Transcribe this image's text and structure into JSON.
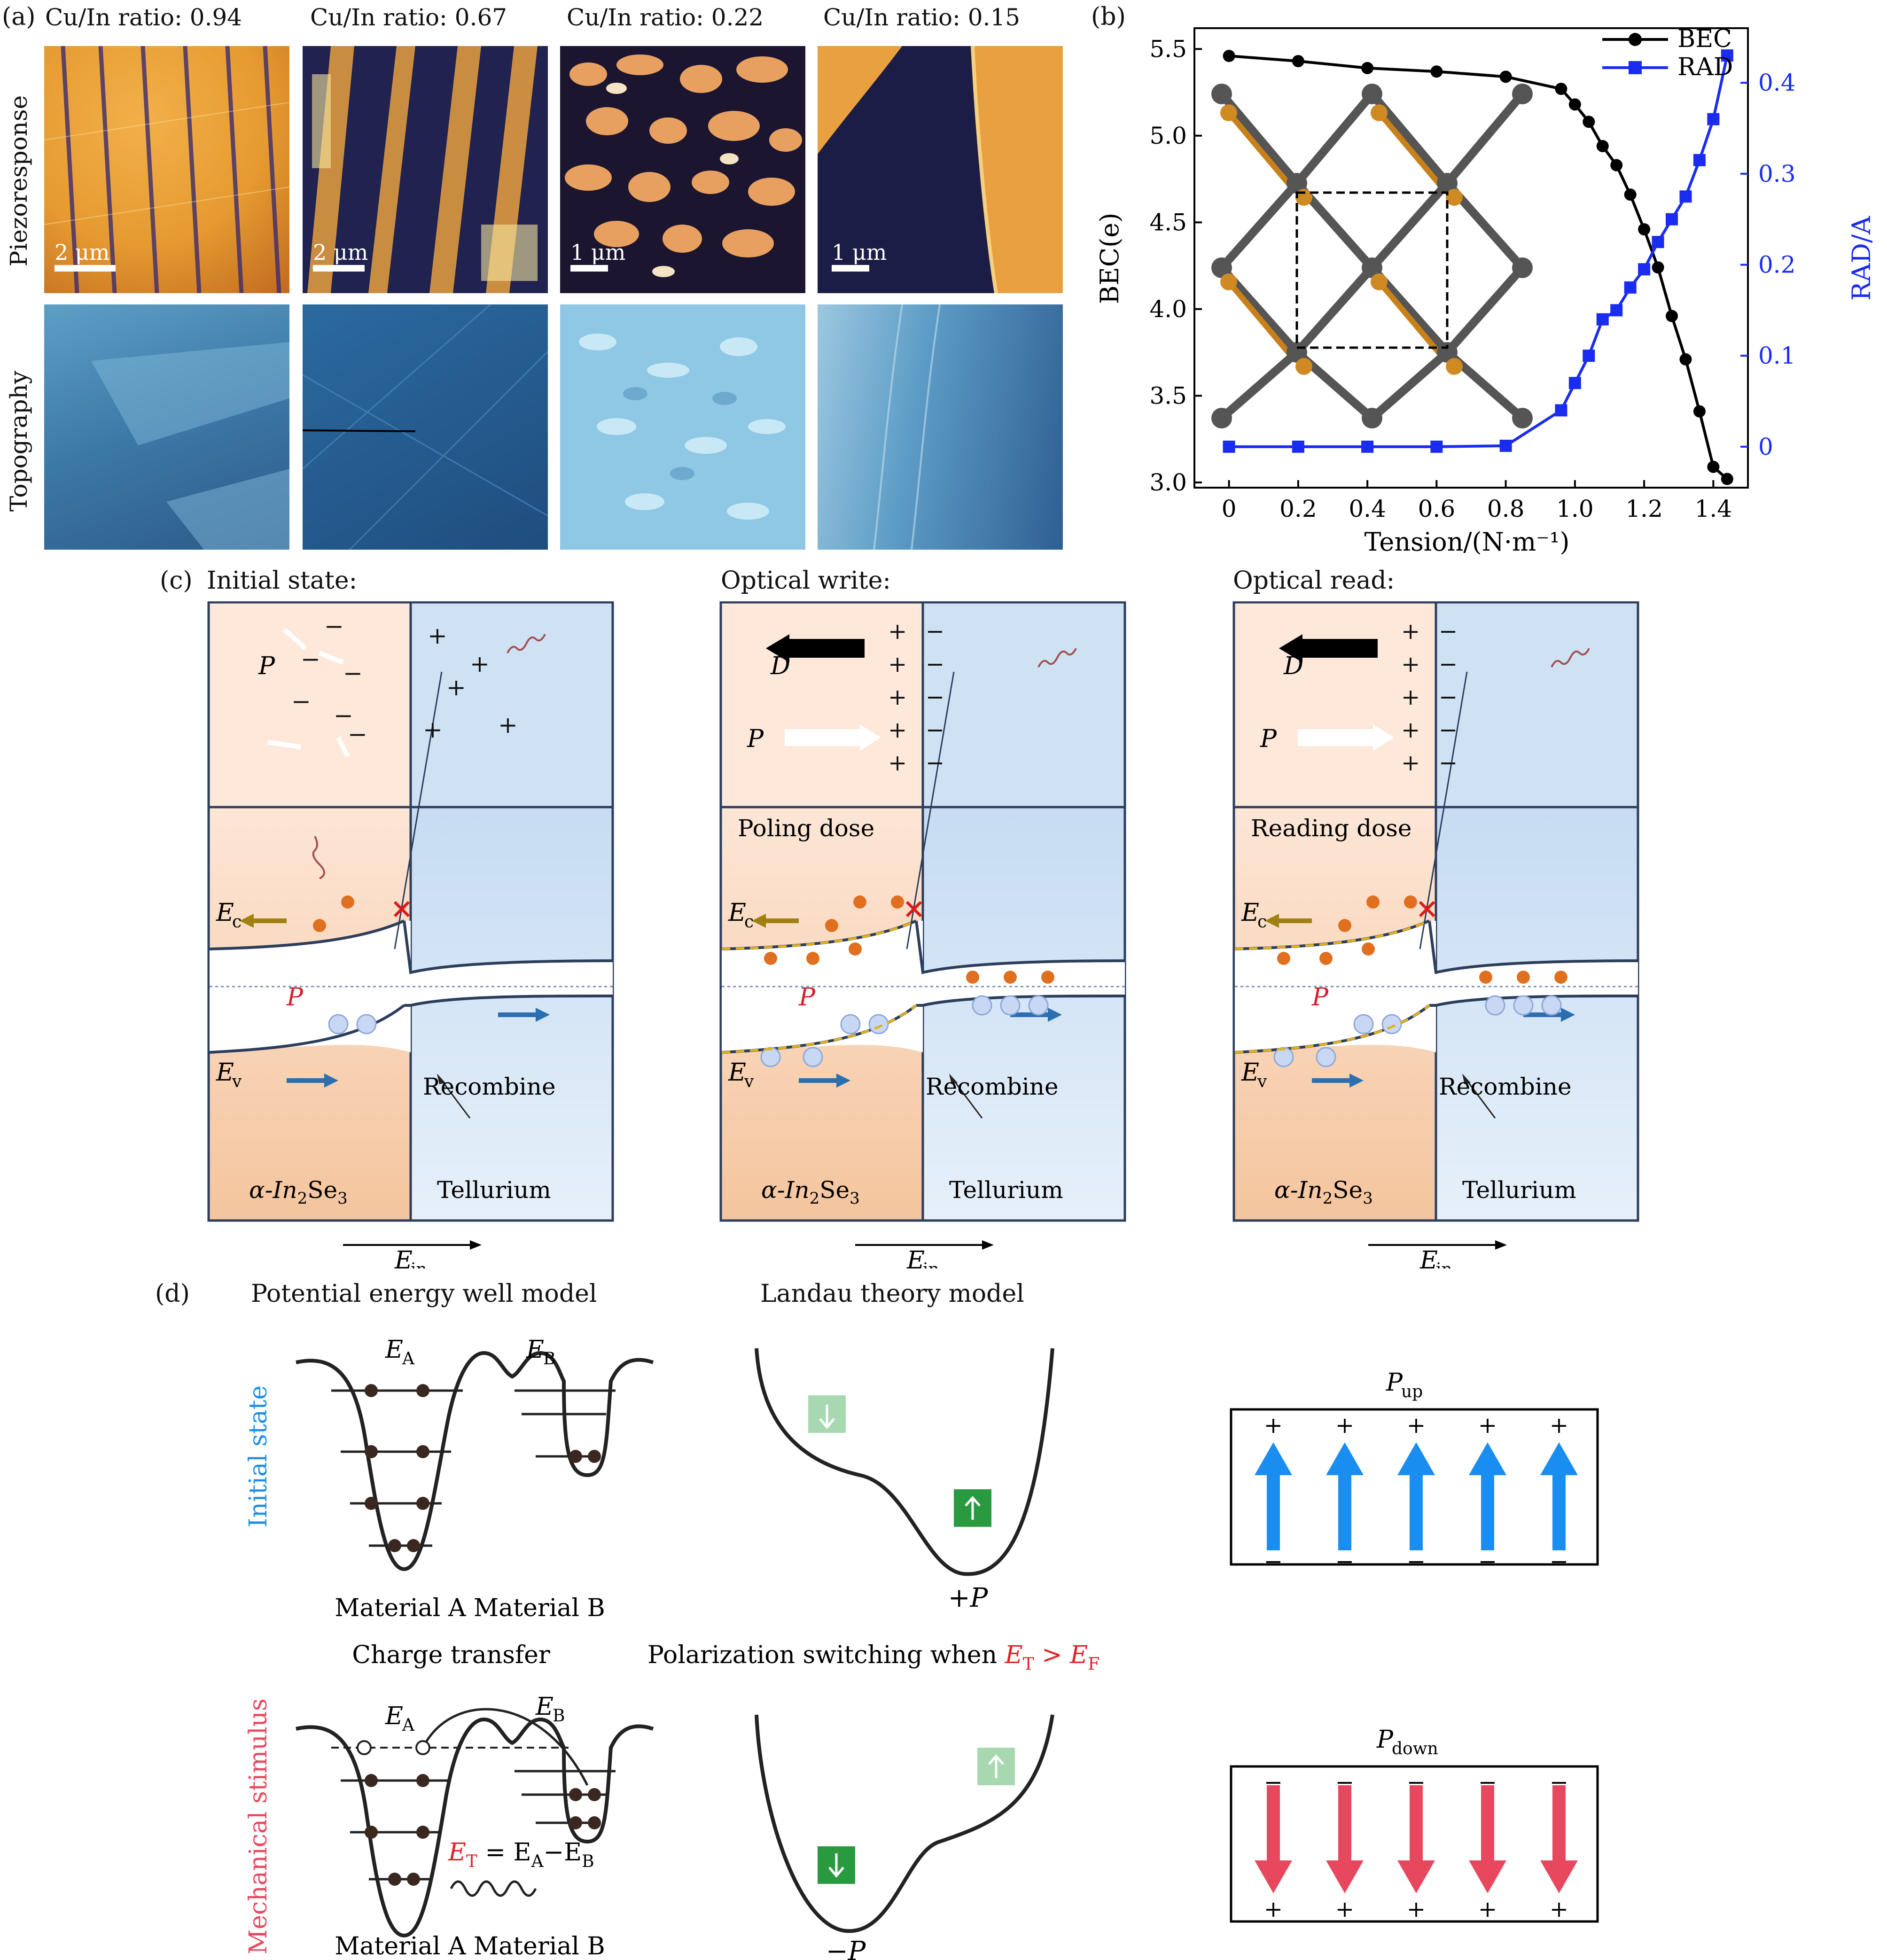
{
  "panel_a": {
    "label": "(a)",
    "ratios": [
      "Cu/In ratio: 0.94",
      "Cu/In ratio: 0.67",
      "Cu/In ratio: 0.22",
      "Cu/In ratio: 0.15"
    ],
    "row_labels": [
      "Piezoresponse",
      "Topography"
    ],
    "scale_bars": [
      "2 μm",
      "2 μm",
      "1 μm",
      "1 μm"
    ]
  },
  "panel_b": {
    "label": "(b)",
    "chart_data": {
      "type": "line",
      "xlabel": "Tension/(N·m⁻¹)",
      "ylabel_left": "BEC(e)",
      "ylabel_right": "RAD/A",
      "xlim": [
        -0.1,
        1.5
      ],
      "ylim_left": [
        2.97,
        5.62
      ],
      "ylim_right": [
        -0.045,
        0.46
      ],
      "x_ticks": [
        "0",
        "0.2",
        "0.4",
        "0.6",
        "0.8",
        "1.0",
        "1.2",
        "1.4"
      ],
      "y_left_ticks": [
        "3.0",
        "3.5",
        "4.0",
        "4.5",
        "5.0",
        "5.5"
      ],
      "y_right_ticks": [
        "0",
        "0.1",
        "0.2",
        "0.3",
        "0.4"
      ],
      "legend_position": "top-right",
      "series": [
        {
          "name": "BEC",
          "axis": "left",
          "color": "#000000",
          "marker": "circle",
          "x": [
            0,
            0.2,
            0.4,
            0.6,
            0.8,
            0.96,
            1.0,
            1.04,
            1.08,
            1.12,
            1.16,
            1.2,
            1.24,
            1.28,
            1.32,
            1.36,
            1.4,
            1.44
          ],
          "y": [
            5.46,
            5.43,
            5.39,
            5.37,
            5.34,
            5.27,
            5.18,
            5.08,
            4.94,
            4.83,
            4.66,
            4.46,
            4.24,
            3.96,
            3.71,
            3.41,
            3.09,
            3.02
          ]
        },
        {
          "name": "RAD",
          "axis": "right",
          "color": "#1a2cf0",
          "marker": "square",
          "x": [
            0,
            0.2,
            0.4,
            0.6,
            0.8,
            0.96,
            1.0,
            1.04,
            1.08,
            1.12,
            1.16,
            1.2,
            1.24,
            1.28,
            1.32,
            1.36,
            1.4,
            1.44
          ],
          "y": [
            0,
            0,
            0,
            0,
            0.001,
            0.04,
            0.07,
            0.1,
            0.14,
            0.15,
            0.175,
            0.195,
            0.225,
            0.25,
            0.275,
            0.315,
            0.36,
            0.43
          ]
        }
      ]
    }
  },
  "panel_c": {
    "label": "(c)",
    "titles": [
      "Initial state:",
      "Optical write:",
      "Optical read:"
    ],
    "P": "P",
    "D": "D",
    "dose_labels": [
      "",
      "Poling dose",
      "Reading dose"
    ],
    "Ec": "E",
    "Ec_sub": "c",
    "Ev": "E",
    "Ev_sub": "v",
    "recombine": "Recombine",
    "material_left": "α-In",
    "material_left_sub": "2",
    "material_left_end": "Se",
    "material_left_sub2": "3",
    "material_right": "Tellurium",
    "Ein": "E",
    "Ein_sub": "in"
  },
  "panel_d": {
    "label": "(d)",
    "col_titles": [
      "Potential energy well model",
      "Landau theory model"
    ],
    "row_labels": [
      "Initial state",
      "Mechanical stimulus"
    ],
    "row_label_colors": [
      "#1f8ee8",
      "#e8485e"
    ],
    "EA": "E",
    "EA_sub": "A",
    "EB": "E",
    "EB_sub": "B",
    "material_ab": "Material A Material B",
    "charge_transfer": "Charge transfer",
    "switch_text": "Polarization switching when ",
    "ET": "E",
    "ET_sub": "T",
    "gt": " > ",
    "EF": "E",
    "EF_sub": "F",
    "eq_ET": "E",
    "eq_sub_T": "T",
    "eq_rest": " = E",
    "eq_sub_A": "A",
    "eq_minus": "−E",
    "eq_sub_B": "B",
    "plusP": "+P",
    "minusP": "−P",
    "Pup": "P",
    "Pup_sub": "up",
    "Pdown": "P",
    "Pdown_sub": "down",
    "plus": "+",
    "minus": "−"
  }
}
